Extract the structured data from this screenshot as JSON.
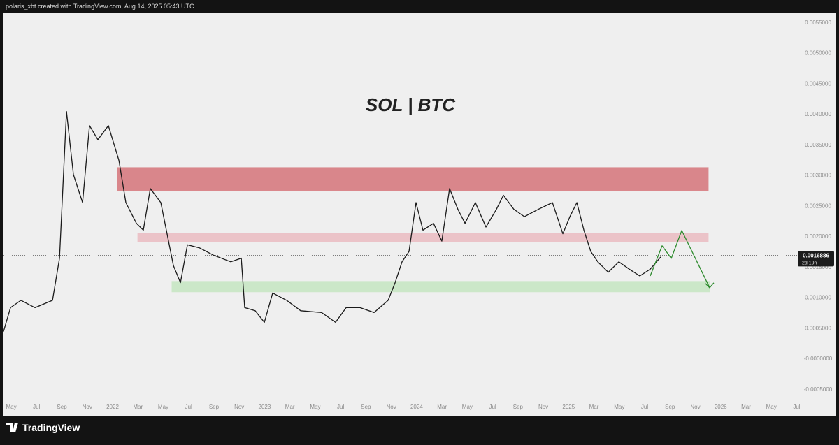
{
  "header": "polaris_xbt created with TradingView.com, Aug 14, 2025 05:43 UTC",
  "footer": "TradingView",
  "chart_data": {
    "type": "line",
    "title": "SOL | BTC",
    "xlim": [
      3.39,
      66.03
    ],
    "xticks": [
      {
        "value": 4,
        "label": "May"
      },
      {
        "value": 6,
        "label": "Jul"
      },
      {
        "value": 8,
        "label": "Sep"
      },
      {
        "value": 10,
        "label": "Nov"
      },
      {
        "value": 12,
        "label": "2022"
      },
      {
        "value": 14,
        "label": "Mar"
      },
      {
        "value": 16,
        "label": "May"
      },
      {
        "value": 18,
        "label": "Jul"
      },
      {
        "value": 20,
        "label": "Sep"
      },
      {
        "value": 22,
        "label": "Nov"
      },
      {
        "value": 24,
        "label": "2023"
      },
      {
        "value": 26,
        "label": "Mar"
      },
      {
        "value": 28,
        "label": "May"
      },
      {
        "value": 30,
        "label": "Jul"
      },
      {
        "value": 32,
        "label": "Sep"
      },
      {
        "value": 34,
        "label": "Nov"
      },
      {
        "value": 36,
        "label": "2024"
      },
      {
        "value": 38,
        "label": "Mar"
      },
      {
        "value": 40,
        "label": "May"
      },
      {
        "value": 42,
        "label": "Jul"
      },
      {
        "value": 44,
        "label": "Sep"
      },
      {
        "value": 46,
        "label": "Nov"
      },
      {
        "value": 48,
        "label": "2025"
      },
      {
        "value": 50,
        "label": "Mar"
      },
      {
        "value": 52,
        "label": "May"
      },
      {
        "value": 54,
        "label": "Jul"
      },
      {
        "value": 56,
        "label": "Sep"
      },
      {
        "value": 58,
        "label": "Nov"
      },
      {
        "value": 60,
        "label": "2026"
      },
      {
        "value": 62,
        "label": "Mar"
      },
      {
        "value": 64,
        "label": "May"
      },
      {
        "value": 66,
        "label": "Jul"
      }
    ],
    "ylim": [
      -0.00088,
      0.00566
    ],
    "yticks": [
      {
        "value": 0.0055,
        "label": "0.0055000"
      },
      {
        "value": 0.005,
        "label": "0.0050000"
      },
      {
        "value": 0.0045,
        "label": "0.0045000"
      },
      {
        "value": 0.004,
        "label": "0.0040000"
      },
      {
        "value": 0.0035,
        "label": "0.0035000"
      },
      {
        "value": 0.003,
        "label": "0.0030000"
      },
      {
        "value": 0.0025,
        "label": "0.0025000"
      },
      {
        "value": 0.002,
        "label": "0.0020000"
      },
      {
        "value": 0.0015,
        "label": "0.0015000"
      },
      {
        "value": 0.001,
        "label": "0.0010000"
      },
      {
        "value": 0.0005,
        "label": "0.0005000"
      },
      {
        "value": 0,
        "label": "-0.0000000"
      },
      {
        "value": -0.0005,
        "label": "-0.0005000"
      }
    ],
    "grid": false,
    "series": [
      {
        "color": "#1a1a1a",
        "x": [
          3.39,
          3.94,
          4.77,
          5.88,
          7.26,
          7.81,
          8.36,
          8.91,
          9.63,
          10.18,
          10.84,
          11.67,
          12.5,
          13.05,
          13.88,
          14.43,
          14.98,
          15.81,
          16.36,
          16.8,
          17.36,
          17.91,
          18.85,
          19.95,
          21.33,
          22.16,
          22.43,
          23.26,
          23.98,
          24.64,
          25.74,
          26.85,
          28.5,
          29.6,
          30.44,
          31.54,
          32.64,
          33.75,
          34.3,
          34.85,
          35.4,
          35.95,
          36.5,
          37.33,
          37.99,
          38.6,
          39.26,
          39.82,
          40.64,
          41.47,
          42.3,
          42.85,
          43.68,
          44.51,
          45.61,
          46.72,
          47.54,
          48.1,
          48.65,
          49.2,
          49.75,
          50.3,
          51.13,
          51.96,
          52.79,
          53.62,
          54.44,
          55.27
        ],
        "values": [
          0.00044,
          0.00083,
          0.00095,
          0.00083,
          0.00095,
          0.00164,
          0.00404,
          0.00301,
          0.00255,
          0.00381,
          0.00358,
          0.00381,
          0.00324,
          0.00255,
          0.00221,
          0.0021,
          0.00278,
          0.00255,
          0.00198,
          0.00152,
          0.00124,
          0.00186,
          0.00181,
          0.00169,
          0.00158,
          0.00164,
          0.00083,
          0.00078,
          0.00059,
          0.00107,
          0.00095,
          0.00078,
          0.00075,
          0.00059,
          0.00083,
          0.00083,
          0.00075,
          0.00095,
          0.00124,
          0.00158,
          0.00175,
          0.00255,
          0.0021,
          0.00221,
          0.00192,
          0.00278,
          0.00244,
          0.00221,
          0.00255,
          0.00215,
          0.00244,
          0.00267,
          0.00244,
          0.00232,
          0.00244,
          0.00255,
          0.00204,
          0.00232,
          0.00255,
          0.0021,
          0.00175,
          0.00158,
          0.00141,
          0.00158,
          0.00146,
          0.00135,
          0.00146,
          0.00166
        ]
      },
      {
        "color": "#2e8b2e",
        "x": [
          54.44,
          55.38,
          56.1,
          56.93,
          59.13
        ],
        "values": [
          0.00135,
          0.001843,
          0.001637,
          0.002094,
          0.001157
        ]
      }
    ],
    "zones": [
      {
        "x": [
          12.39,
          59.02
        ],
        "y": [
          0.002746,
          0.003123
        ],
        "color": "#d9868b"
      },
      {
        "x": [
          13.99,
          59.02
        ],
        "y": [
          0.001911,
          0.002049
        ],
        "color": "#ebc3c8"
      },
      {
        "x": [
          16.69,
          59.13
        ],
        "y": [
          0.001089,
          0.00126
        ],
        "color": "#cbe7c8"
      }
    ],
    "last_price": {
      "value": 0.0016886,
      "label": "0.0016886"
    },
    "countdown": "2d 19h"
  }
}
